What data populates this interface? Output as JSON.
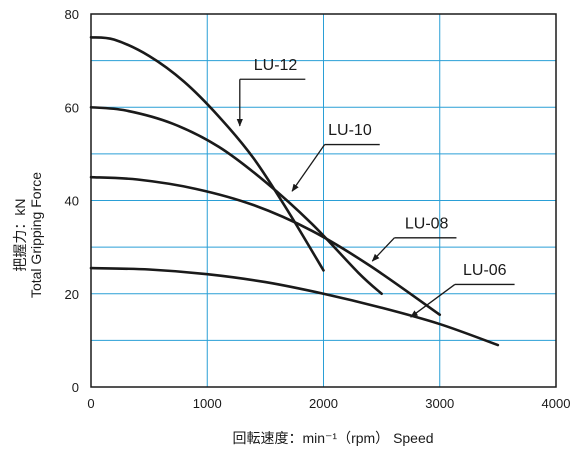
{
  "chart_data": {
    "type": "line",
    "xlabel": "回転速度：min⁻¹（rpm） Speed",
    "ylabel_line1": "把握力：kN",
    "ylabel_line2": "Total  Gripping  Force",
    "xlim": [
      0,
      4000
    ],
    "ylim": [
      0,
      80
    ],
    "x_ticks": [
      0,
      1000,
      2000,
      3000,
      4000
    ],
    "y_ticks": [
      0,
      20,
      40,
      60,
      80
    ],
    "grid": true,
    "colors": {
      "grid": "#2a9fd6",
      "line": "#1a1a1a",
      "frame": "#1a1a1a"
    },
    "series": [
      {
        "name": "LU-12",
        "x": [
          0,
          200,
          500,
          800,
          1100,
          1400,
          1700,
          2000
        ],
        "y": [
          75,
          74.5,
          71,
          65.5,
          58,
          49,
          37.5,
          25
        ],
        "label_text_at": [
          1400,
          68
        ],
        "label_line_from": [
          1280,
          66
        ],
        "label_arrow_to": [
          1280,
          56
        ]
      },
      {
        "name": "LU-10",
        "x": [
          0,
          300,
          700,
          1100,
          1500,
          1900,
          2300,
          2500
        ],
        "y": [
          60,
          59.3,
          56.5,
          51.5,
          44,
          35,
          24.5,
          20
        ],
        "label_text_at": [
          2040,
          54
        ],
        "label_line_from": [
          2010,
          52
        ],
        "label_arrow_to": [
          1730,
          42
        ]
      },
      {
        "name": "LU-08",
        "x": [
          0,
          400,
          900,
          1400,
          1900,
          2400,
          3000
        ],
        "y": [
          45,
          44.5,
          42.5,
          39,
          33.5,
          26,
          15.5
        ],
        "label_text_at": [
          2700,
          34
        ],
        "label_line_from": [
          2610,
          32
        ],
        "label_arrow_to": [
          2420,
          27
        ]
      },
      {
        "name": "LU-06",
        "x": [
          0,
          500,
          1000,
          1500,
          2000,
          2500,
          3000,
          3500
        ],
        "y": [
          25.5,
          25.2,
          24.2,
          22.5,
          20,
          17,
          13.5,
          9
        ],
        "label_text_at": [
          3200,
          24
        ],
        "label_line_from": [
          3130,
          22
        ],
        "label_arrow_to": [
          2750,
          15
        ]
      }
    ]
  }
}
